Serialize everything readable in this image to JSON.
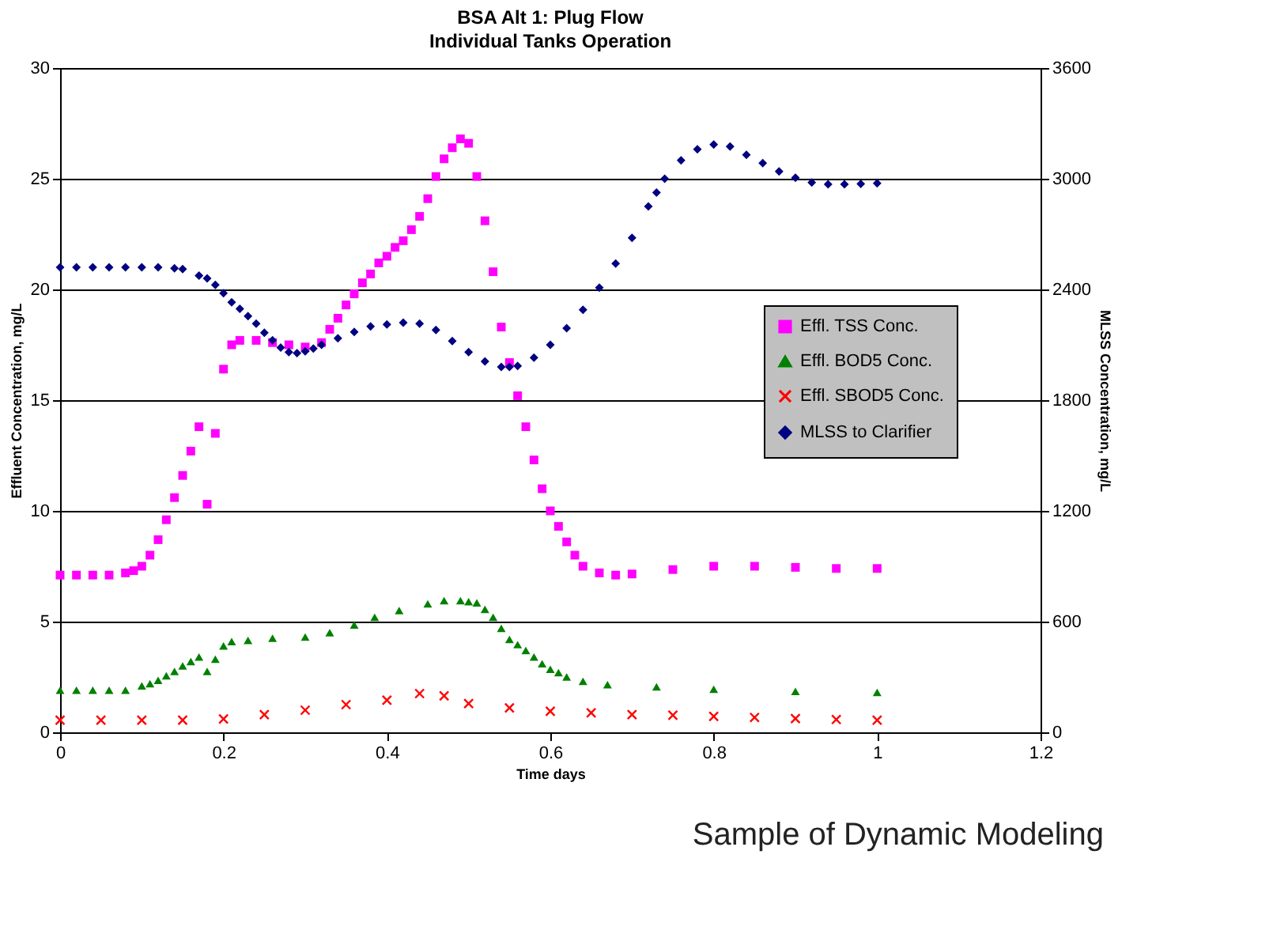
{
  "chart_data": {
    "type": "scatter",
    "title": "BSA Alt 1: Plug Flow",
    "subtitle": "Individual Tanks Operation",
    "xlabel": "Time days",
    "ylabel": "Effluent Concentration, mg/L",
    "y2label": "MLSS Concentration, mg/L",
    "xlim": [
      0,
      1.2
    ],
    "xticks": [
      0,
      0.2,
      0.4,
      0.6,
      0.8,
      1,
      1.2
    ],
    "ylim": [
      0,
      30
    ],
    "yticks": [
      0,
      5,
      10,
      15,
      20,
      25,
      30
    ],
    "y2lim": [
      0,
      3600
    ],
    "y2ticks": [
      0,
      600,
      1200,
      1800,
      2400,
      3000,
      3600
    ],
    "grid": "y",
    "legend": "right",
    "annotations": [
      "Sample of Dynamic Modeling"
    ],
    "series": [
      {
        "name": "Effl. TSS Conc.",
        "color": "#ff00ff",
        "marker": "square",
        "x": [
          0,
          0.02,
          0.04,
          0.06,
          0.08,
          0.09,
          0.1,
          0.11,
          0.12,
          0.13,
          0.14,
          0.15,
          0.16,
          0.17,
          0.18,
          0.19,
          0.2,
          0.21,
          0.22,
          0.24,
          0.26,
          0.28,
          0.3,
          0.32,
          0.33,
          0.34,
          0.35,
          0.36,
          0.37,
          0.38,
          0.39,
          0.4,
          0.41,
          0.42,
          0.43,
          0.44,
          0.45,
          0.46,
          0.47,
          0.48,
          0.49,
          0.5,
          0.51,
          0.52,
          0.53,
          0.54,
          0.55,
          0.56,
          0.57,
          0.58,
          0.59,
          0.6,
          0.61,
          0.62,
          0.63,
          0.64,
          0.66,
          0.68,
          0.7,
          0.75,
          0.8,
          0.85,
          0.9,
          0.95,
          1
        ],
        "values": [
          7.1,
          7.1,
          7.1,
          7.1,
          7.2,
          7.3,
          7.5,
          8.0,
          8.7,
          9.6,
          10.6,
          11.6,
          12.7,
          13.8,
          10.3,
          13.5,
          16.4,
          17.5,
          17.7,
          17.7,
          17.6,
          17.5,
          17.4,
          17.6,
          18.2,
          18.7,
          19.3,
          19.8,
          20.3,
          20.7,
          21.2,
          21.5,
          21.9,
          22.2,
          22.7,
          23.3,
          24.1,
          25.1,
          25.9,
          26.4,
          26.8,
          26.6,
          25.1,
          23.1,
          20.8,
          18.3,
          16.7,
          15.2,
          13.8,
          12.3,
          11.0,
          10.0,
          9.3,
          8.6,
          8.0,
          7.5,
          7.2,
          7.1,
          7.15,
          7.35,
          7.5,
          7.5,
          7.45,
          7.4,
          7.4
        ]
      },
      {
        "name": "Effl. BOD5 Conc.",
        "color": "#008000",
        "marker": "triangle",
        "x": [
          0,
          0.02,
          0.04,
          0.06,
          0.08,
          0.1,
          0.11,
          0.12,
          0.13,
          0.14,
          0.15,
          0.16,
          0.17,
          0.18,
          0.19,
          0.2,
          0.21,
          0.23,
          0.26,
          0.3,
          0.33,
          0.36,
          0.385,
          0.415,
          0.45,
          0.47,
          0.49,
          0.5,
          0.51,
          0.52,
          0.53,
          0.54,
          0.55,
          0.56,
          0.57,
          0.58,
          0.59,
          0.6,
          0.61,
          0.62,
          0.64,
          0.67,
          0.73,
          0.8,
          0.9,
          1
        ],
        "values": [
          1.9,
          1.9,
          1.9,
          1.9,
          1.9,
          2.1,
          2.2,
          2.35,
          2.55,
          2.75,
          3.0,
          3.2,
          3.4,
          2.75,
          3.3,
          3.9,
          4.1,
          4.15,
          4.25,
          4.3,
          4.5,
          4.85,
          5.2,
          5.5,
          5.8,
          5.95,
          5.95,
          5.9,
          5.85,
          5.55,
          5.2,
          4.7,
          4.2,
          3.96,
          3.7,
          3.4,
          3.1,
          2.85,
          2.7,
          2.5,
          2.3,
          2.15,
          2.05,
          1.95,
          1.85,
          1.8
        ]
      },
      {
        "name": "Effl. SBOD5 Conc.",
        "color": "#ff0000",
        "marker": "cross",
        "x": [
          0,
          0.05,
          0.1,
          0.15,
          0.2,
          0.25,
          0.3,
          0.35,
          0.4,
          0.44,
          0.47,
          0.5,
          0.55,
          0.6,
          0.65,
          0.7,
          0.75,
          0.8,
          0.85,
          0.9,
          0.95,
          1
        ],
        "values": [
          0.55,
          0.55,
          0.55,
          0.55,
          0.6,
          0.8,
          1.0,
          1.25,
          1.45,
          1.75,
          1.65,
          1.3,
          1.1,
          0.95,
          0.88,
          0.8,
          0.77,
          0.72,
          0.67,
          0.62,
          0.58,
          0.55
        ]
      },
      {
        "name": "MLSS to Clarifier",
        "color": "#000080",
        "marker": "diamond",
        "axis": "y2",
        "x": [
          0,
          0.02,
          0.04,
          0.06,
          0.08,
          0.1,
          0.12,
          0.14,
          0.15,
          0.17,
          0.18,
          0.19,
          0.2,
          0.21,
          0.22,
          0.23,
          0.24,
          0.25,
          0.26,
          0.27,
          0.28,
          0.29,
          0.3,
          0.31,
          0.32,
          0.34,
          0.36,
          0.38,
          0.4,
          0.42,
          0.44,
          0.46,
          0.48,
          0.5,
          0.52,
          0.54,
          0.55,
          0.56,
          0.58,
          0.6,
          0.62,
          0.64,
          0.66,
          0.68,
          0.7,
          0.72,
          0.73,
          0.74,
          0.76,
          0.78,
          0.8,
          0.82,
          0.84,
          0.86,
          0.88,
          0.9,
          0.92,
          0.94,
          0.96,
          0.98,
          1
        ],
        "values": [
          2520,
          2520,
          2520,
          2520,
          2520,
          2520,
          2520,
          2515,
          2510,
          2475,
          2460,
          2425,
          2380,
          2330,
          2295,
          2255,
          2215,
          2165,
          2125,
          2085,
          2060,
          2055,
          2065,
          2080,
          2100,
          2135,
          2170,
          2200,
          2210,
          2220,
          2215,
          2180,
          2120,
          2060,
          2010,
          1980,
          1980,
          1985,
          2030,
          2100,
          2190,
          2290,
          2410,
          2540,
          2680,
          2850,
          2925,
          3000,
          3100,
          3160,
          3185,
          3175,
          3130,
          3085,
          3040,
          3005,
          2980,
          2970,
          2970,
          2972,
          2975
        ]
      }
    ]
  }
}
